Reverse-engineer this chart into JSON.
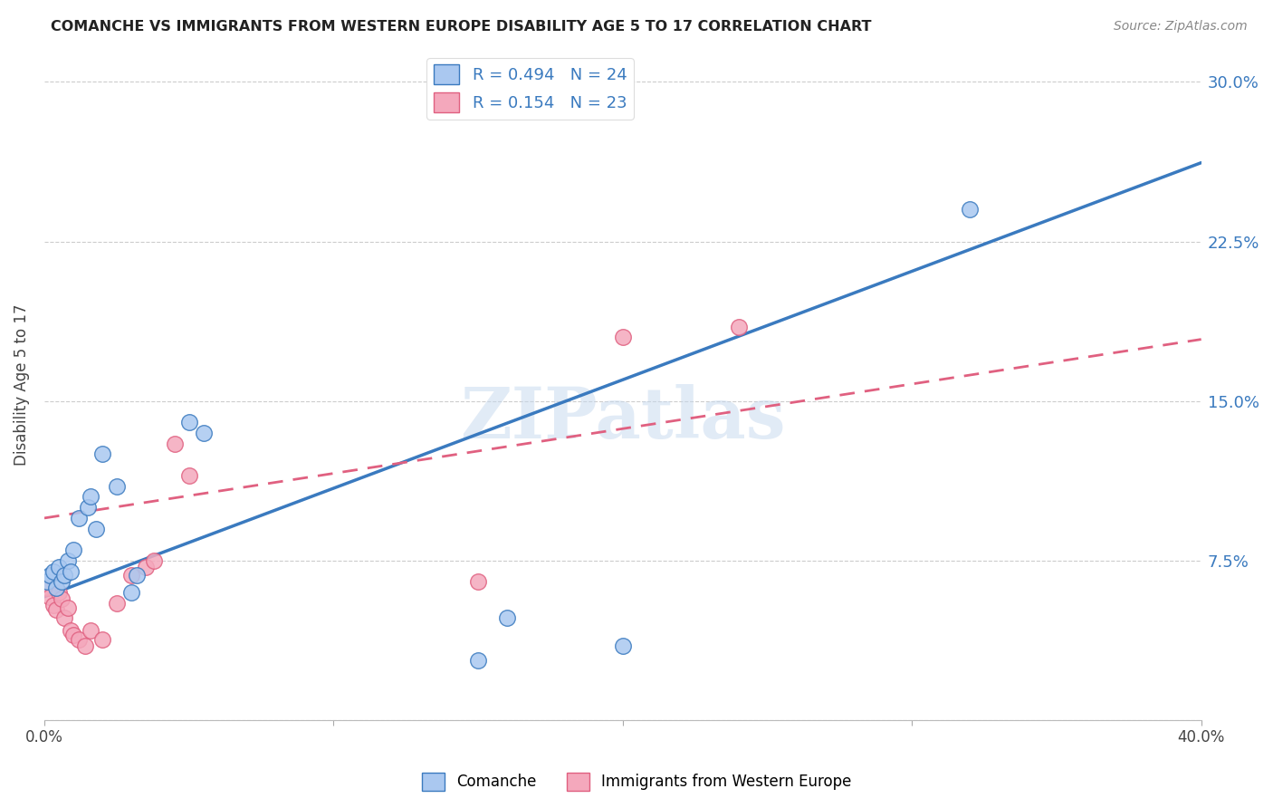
{
  "title": "COMANCHE VS IMMIGRANTS FROM WESTERN EUROPE DISABILITY AGE 5 TO 17 CORRELATION CHART",
  "source": "Source: ZipAtlas.com",
  "ylabel": "Disability Age 5 to 17",
  "xlim": [
    0.0,
    0.4
  ],
  "ylim": [
    0.0,
    0.315
  ],
  "yticks": [
    0.0,
    0.075,
    0.15,
    0.225,
    0.3
  ],
  "ytick_labels": [
    "",
    "7.5%",
    "15.0%",
    "22.5%",
    "30.0%"
  ],
  "xticks": [
    0.0,
    0.1,
    0.2,
    0.3,
    0.4
  ],
  "R_comanche": 0.494,
  "N_comanche": 24,
  "R_immigrants": 0.154,
  "N_immigrants": 23,
  "comanche_color": "#aac8f0",
  "immigrants_color": "#f4a8bc",
  "line_comanche_color": "#3a7abf",
  "line_immigrants_color": "#e06080",
  "watermark": "ZIPatlas",
  "comanche_x": [
    0.001,
    0.002,
    0.003,
    0.004,
    0.005,
    0.006,
    0.007,
    0.008,
    0.009,
    0.01,
    0.012,
    0.015,
    0.016,
    0.018,
    0.02,
    0.025,
    0.03,
    0.032,
    0.05,
    0.055,
    0.15,
    0.16,
    0.2,
    0.32
  ],
  "comanche_y": [
    0.065,
    0.068,
    0.07,
    0.062,
    0.072,
    0.065,
    0.068,
    0.075,
    0.07,
    0.08,
    0.095,
    0.1,
    0.105,
    0.09,
    0.125,
    0.11,
    0.06,
    0.068,
    0.14,
    0.135,
    0.028,
    0.048,
    0.035,
    0.24
  ],
  "immigrants_x": [
    0.001,
    0.002,
    0.003,
    0.004,
    0.005,
    0.006,
    0.007,
    0.008,
    0.009,
    0.01,
    0.012,
    0.014,
    0.016,
    0.02,
    0.025,
    0.03,
    0.035,
    0.038,
    0.045,
    0.05,
    0.15,
    0.2,
    0.24
  ],
  "immigrants_y": [
    0.062,
    0.058,
    0.054,
    0.052,
    0.06,
    0.057,
    0.048,
    0.053,
    0.042,
    0.04,
    0.038,
    0.035,
    0.042,
    0.038,
    0.055,
    0.068,
    0.072,
    0.075,
    0.13,
    0.115,
    0.065,
    0.18,
    0.185
  ],
  "background_color": "#ffffff",
  "grid_color": "#cccccc",
  "line_comanche_intercept": 0.058,
  "line_comanche_slope": 0.51,
  "line_immigrants_intercept": 0.095,
  "line_immigrants_slope": 0.21
}
